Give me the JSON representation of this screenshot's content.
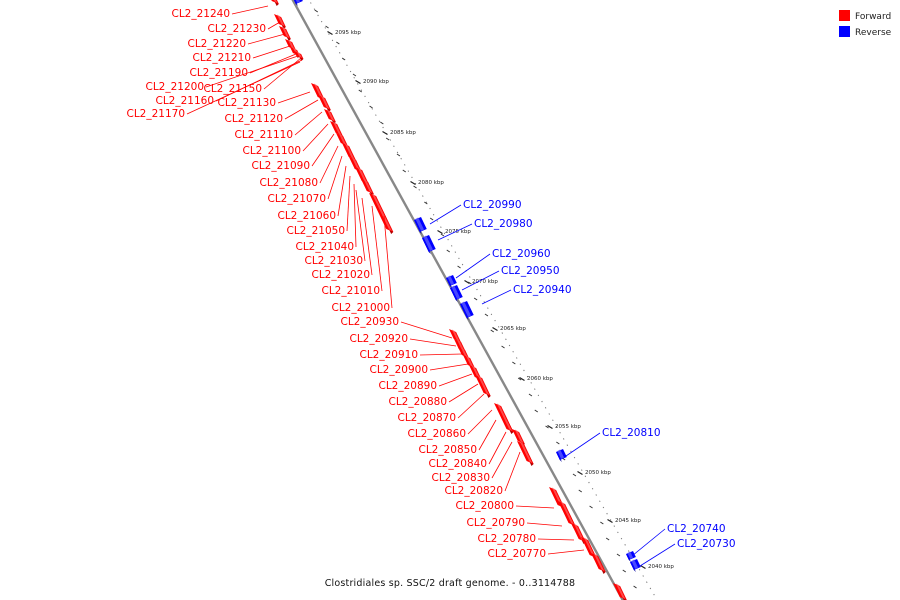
{
  "caption": "Clostridiales sp. SSC/2 draft genome. - 0..3114788",
  "legend": [
    {
      "label": "Forward",
      "color": "#ff0000"
    },
    {
      "label": "Reverse",
      "color": "#0000ff"
    }
  ],
  "colors": {
    "forward": "#ff0000",
    "reverse": "#0000ff",
    "backbone": "#888888"
  },
  "ticks": [
    {
      "label": "2095 kbp",
      "kbp": 2095
    },
    {
      "label": "2090 kbp",
      "kbp": 2090
    },
    {
      "label": "2085 kbp",
      "kbp": 2085
    },
    {
      "label": "2080 kbp",
      "kbp": 2080
    },
    {
      "label": "2075 kbp",
      "kbp": 2075
    },
    {
      "label": "2070 kbp",
      "kbp": 2070
    },
    {
      "label": "2065 kbp",
      "kbp": 2065
    },
    {
      "label": "2060 kbp",
      "kbp": 2060
    },
    {
      "label": "2055 kbp",
      "kbp": 2055
    },
    {
      "label": "2050 kbp",
      "kbp": 2050
    },
    {
      "label": "2045 kbp",
      "kbp": 2045
    },
    {
      "label": "2040 kbp",
      "kbp": 2040
    }
  ],
  "forward_genes": [
    "CL2_21240",
    "CL2_21230",
    "CL2_21220",
    "CL2_21210",
    "CL2_21190",
    "CL2_21200",
    "CL2_21150",
    "CL2_21160",
    "CL2_21130",
    "CL2_21170",
    "CL2_21120",
    "CL2_21110",
    "CL2_21100",
    "CL2_21090",
    "CL2_21080",
    "CL2_21070",
    "CL2_21060",
    "CL2_21050",
    "CL2_21040",
    "CL2_21030",
    "CL2_21020",
    "CL2_21010",
    "CL2_21000",
    "CL2_20930",
    "CL2_20920",
    "CL2_20910",
    "CL2_20900",
    "CL2_20890",
    "CL2_20880",
    "CL2_20870",
    "CL2_20860",
    "CL2_20850",
    "CL2_20840",
    "CL2_20830",
    "CL2_20820",
    "CL2_20800",
    "CL2_20790",
    "CL2_20780",
    "CL2_20770"
  ],
  "reverse_genes": [
    "CL2_20990",
    "CL2_20980",
    "CL2_20960",
    "CL2_20950",
    "CL2_20940",
    "CL2_20810",
    "CL2_20740",
    "CL2_20730"
  ]
}
